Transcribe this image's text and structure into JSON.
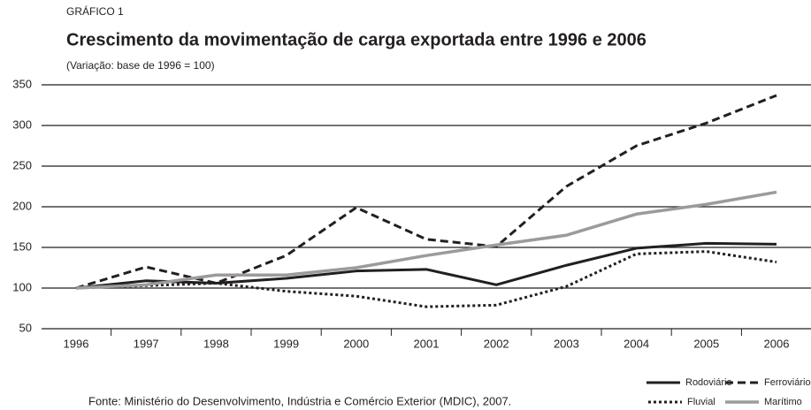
{
  "chart_data": {
    "type": "line",
    "label": "GRÁFICO 1",
    "title": "Crescimento da movimentação de carga exportada entre 1996 e 2006",
    "subtitle": "(Variação: base de 1996 = 100)",
    "source": "Fonte: Ministério do Desenvolvimento, Indústria e Comércio Exterior (MDIC), 2007.",
    "categories": [
      "1996",
      "1997",
      "1998",
      "1999",
      "2000",
      "2001",
      "2002",
      "2003",
      "2004",
      "2005",
      "2006"
    ],
    "series": [
      {
        "name": "Rodoviário",
        "color": "#231f20",
        "dash": "solid",
        "values": [
          100,
          109,
          106,
          112,
          121,
          123,
          104,
          128,
          149,
          155,
          154
        ]
      },
      {
        "name": "Ferroviário",
        "color": "#231f20",
        "dash": "dashed",
        "values": [
          100,
          126,
          106,
          140,
          199,
          160,
          151,
          225,
          275,
          303,
          337
        ]
      },
      {
        "name": "Fluvial",
        "color": "#231f20",
        "dash": "dotted",
        "values": [
          100,
          103,
          106,
          96,
          90,
          77,
          79,
          102,
          142,
          145,
          132
        ]
      },
      {
        "name": "Marítimo",
        "color": "#9b9b9b",
        "dash": "solid",
        "values": [
          100,
          104,
          116,
          116,
          125,
          140,
          153,
          165,
          191,
          203,
          218
        ]
      }
    ],
    "ylim": [
      50,
      350
    ],
    "yticks": [
      50,
      100,
      150,
      200,
      250,
      300,
      350
    ],
    "grid": true,
    "legend": "bottom-right"
  }
}
